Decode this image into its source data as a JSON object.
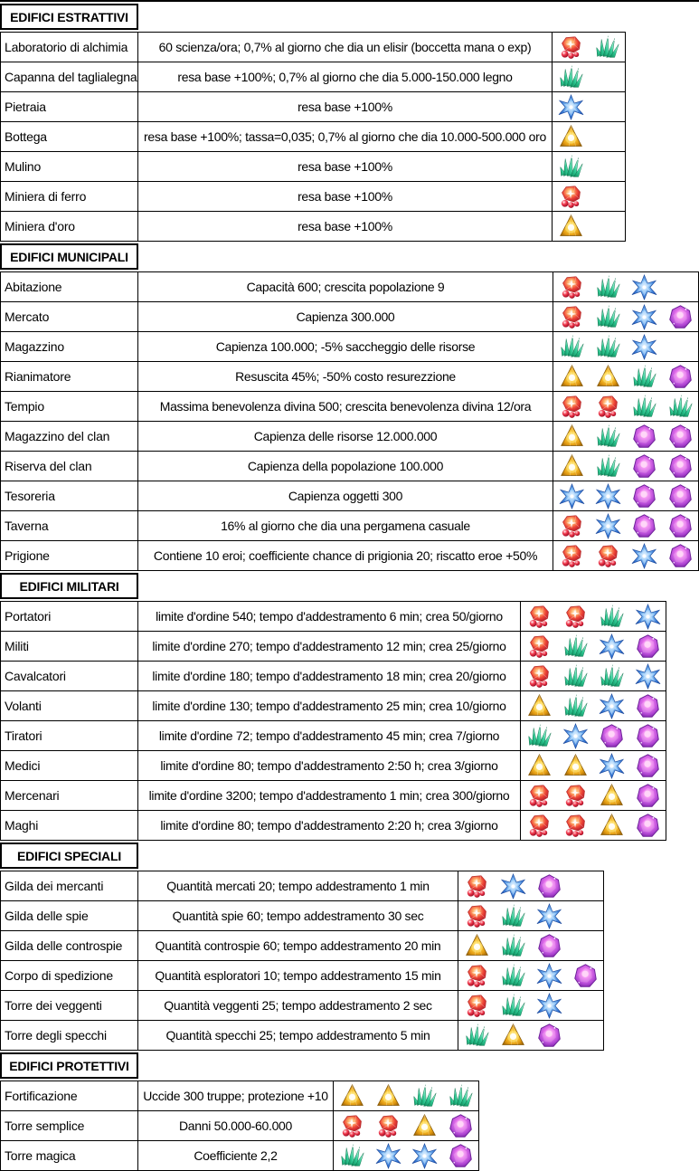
{
  "document_title": "",
  "gem_colors": {
    "red": "#d8232e",
    "green": "#2ec993",
    "blue": "#2e6fd0",
    "gold": "#e9a714",
    "purple": "#b44ad6"
  },
  "sections": [
    {
      "id": "estrattivi",
      "title": "EDIFICI ESTRATTIVI",
      "rows": [
        {
          "name": "Laboratorio di alchimia",
          "description": "60 scienza/ora; 0,7% al giorno che dia un elisir (boccetta mana o exp)",
          "gems": [
            "red",
            "green"
          ]
        },
        {
          "name": "Capanna del taglialegna",
          "description": "resa base +100%; 0,7% al giorno che dia 5.000-150.000 legno",
          "gems": [
            "green"
          ]
        },
        {
          "name": "Pietraia",
          "description": "resa base +100%",
          "gems": [
            "blue"
          ]
        },
        {
          "name": "Bottega",
          "description": "resa base +100%; tassa=0,035; 0,7% al giorno che dia 10.000-500.000 oro",
          "gems": [
            "gold"
          ]
        },
        {
          "name": "Mulino",
          "description": "resa base +100%",
          "gems": [
            "green"
          ]
        },
        {
          "name": "Miniera di ferro",
          "description": "resa base +100%",
          "gems": [
            "red"
          ]
        },
        {
          "name": "Miniera d'oro",
          "description": "resa base +100%",
          "gems": [
            "gold"
          ]
        }
      ]
    },
    {
      "id": "municipali",
      "title": "EDIFICI MUNICIPALI",
      "rows": [
        {
          "name": "Abitazione",
          "description": "Capacità 600; crescita popolazione 9",
          "gems": [
            "red",
            "green",
            "blue"
          ]
        },
        {
          "name": "Mercato",
          "description": "Capienza 300.000",
          "gems": [
            "red",
            "green",
            "blue",
            "purple"
          ]
        },
        {
          "name": "Magazzino",
          "description": "Capienza 100.000; -5% saccheggio delle risorse",
          "gems": [
            "green",
            "green",
            "blue"
          ]
        },
        {
          "name": "Rianimatore",
          "description": "Resuscita 45%; -50% costo resurezzione",
          "gems": [
            "gold",
            "gold",
            "green",
            "purple"
          ]
        },
        {
          "name": "Tempio",
          "description": "Massima benevolenza divina 500; crescita benevolenza divina 12/ora",
          "gems": [
            "red",
            "red",
            "green",
            "green"
          ]
        },
        {
          "name": "Magazzino del clan",
          "description": "Capienza delle risorse 12.000.000",
          "gems": [
            "gold",
            "green",
            "purple",
            "purple"
          ]
        },
        {
          "name": "Riserva del clan",
          "description": "Capienza della popolazione 100.000",
          "gems": [
            "gold",
            "green",
            "purple",
            "purple"
          ]
        },
        {
          "name": "Tesoreria",
          "description": "Capienza oggetti 300",
          "gems": [
            "blue",
            "blue",
            "purple",
            "purple"
          ]
        },
        {
          "name": "Taverna",
          "description": "16% al giorno che dia una pergamena casuale",
          "gems": [
            "red",
            "blue",
            "purple",
            "purple"
          ]
        },
        {
          "name": "Prigione",
          "description": "Contiene 10 eroi; coefficiente chance di prigionia 20; riscatto eroe +50%",
          "gems": [
            "red",
            "red",
            "blue",
            "purple"
          ]
        }
      ]
    },
    {
      "id": "militari",
      "title": "EDIFICI MILITARI",
      "rows": [
        {
          "name": "Portatori",
          "description": "limite d'ordine 540; tempo d'addestramento 6 min; crea 50/giorno",
          "gems": [
            "red",
            "red",
            "green",
            "blue"
          ]
        },
        {
          "name": "Militi",
          "description": "limite d'ordine 270; tempo d'addestramento 12 min; crea 25/giorno",
          "gems": [
            "red",
            "green",
            "blue",
            "purple"
          ]
        },
        {
          "name": "Cavalcatori",
          "description": "limite d'ordine 180; tempo d'addestramento 18 min; crea 20/giorno",
          "gems": [
            "red",
            "green",
            "green",
            "blue"
          ]
        },
        {
          "name": "Volanti",
          "description": "limite d'ordine 130; tempo d'addestramento 25 min; crea 10/giorno",
          "gems": [
            "gold",
            "green",
            "blue",
            "purple"
          ]
        },
        {
          "name": "Tiratori",
          "description": "limite d'ordine 72; tempo d'addestramento 45 min; crea 7/giorno",
          "gems": [
            "green",
            "blue",
            "purple",
            "purple"
          ]
        },
        {
          "name": "Medici",
          "description": "limite d'ordine 80; tempo d'addestramento 2:50 h; crea 3/giorno",
          "gems": [
            "gold",
            "gold",
            "blue",
            "purple"
          ]
        },
        {
          "name": "Mercenari",
          "description": "limite d'ordine 3200; tempo d'addestramento 1 min; crea 300/giorno",
          "gems": [
            "red",
            "red",
            "gold",
            "purple"
          ]
        },
        {
          "name": "Maghi",
          "description": "limite d'ordine 80; tempo d'addestramento 2:20 h; crea 3/giorno",
          "gems": [
            "red",
            "red",
            "gold",
            "purple"
          ]
        }
      ]
    },
    {
      "id": "speciali",
      "title": "EDIFICI SPECIALI",
      "rows": [
        {
          "name": "Gilda dei mercanti",
          "description": "Quantità mercati 20; tempo addestramento 1 min",
          "gems": [
            "red",
            "blue",
            "purple"
          ]
        },
        {
          "name": "Gilda delle spie",
          "description": "Quantità spie 60; tempo addestramento 30 sec",
          "gems": [
            "red",
            "green",
            "blue"
          ]
        },
        {
          "name": "Gilda delle controspie",
          "description": "Quantità controspie 60; tempo addestramento 20 min",
          "gems": [
            "gold",
            "green",
            "purple"
          ]
        },
        {
          "name": "Corpo di spedizione",
          "description": "Quantità esploratori 10; tempo addestramento 15 min",
          "gems": [
            "red",
            "green",
            "blue",
            "purple"
          ]
        },
        {
          "name": "Torre dei veggenti",
          "description": "Quantità veggenti 25; tempo addestramento 2 sec",
          "gems": [
            "red",
            "green",
            "blue"
          ]
        },
        {
          "name": "Torre degli specchi",
          "description": "Quantità specchi 25; tempo addestramento 5 min",
          "gems": [
            "green",
            "gold",
            "purple"
          ]
        }
      ]
    },
    {
      "id": "protettivi",
      "title": "EDIFICI PROTETTIVI",
      "rows": [
        {
          "name": "Fortificazione",
          "description": "Uccide 300 truppe; protezione +10",
          "gems": [
            "gold",
            "gold",
            "green",
            "green"
          ]
        },
        {
          "name": "Torre semplice",
          "description": "Danni 50.000-60.000",
          "gems": [
            "red",
            "red",
            "gold",
            "purple"
          ]
        },
        {
          "name": "Torre magica",
          "description": "Coefficiente 2,2",
          "gems": [
            "green",
            "blue",
            "blue",
            "purple"
          ]
        }
      ]
    }
  ]
}
